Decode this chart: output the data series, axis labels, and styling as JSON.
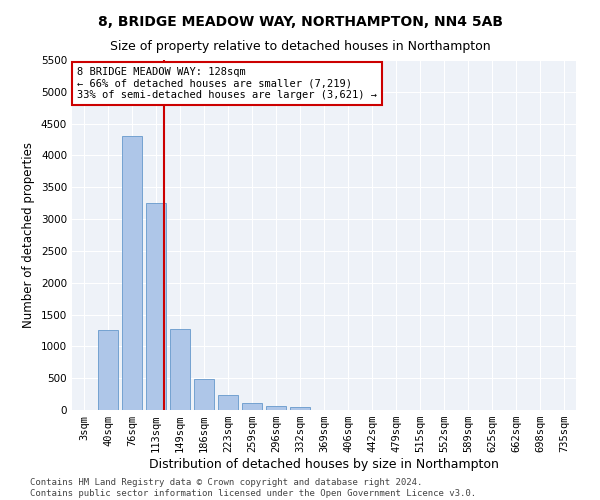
{
  "title1": "8, BRIDGE MEADOW WAY, NORTHAMPTON, NN4 5AB",
  "title2": "Size of property relative to detached houses in Northampton",
  "xlabel": "Distribution of detached houses by size in Northampton",
  "ylabel": "Number of detached properties",
  "categories": [
    "3sqm",
    "40sqm",
    "76sqm",
    "113sqm",
    "149sqm",
    "186sqm",
    "223sqm",
    "259sqm",
    "296sqm",
    "332sqm",
    "369sqm",
    "406sqm",
    "442sqm",
    "479sqm",
    "515sqm",
    "552sqm",
    "589sqm",
    "625sqm",
    "662sqm",
    "698sqm",
    "735sqm"
  ],
  "values": [
    0,
    1250,
    4300,
    3250,
    1280,
    480,
    230,
    110,
    70,
    55,
    0,
    0,
    0,
    0,
    0,
    0,
    0,
    0,
    0,
    0,
    0
  ],
  "bar_color": "#aec6e8",
  "bar_edge_color": "#6699cc",
  "vline_color": "#cc0000",
  "annotation_text": "8 BRIDGE MEADOW WAY: 128sqm\n← 66% of detached houses are smaller (7,219)\n33% of semi-detached houses are larger (3,621) →",
  "annotation_box_color": "#ffffff",
  "annotation_box_edgecolor": "#cc0000",
  "ylim": [
    0,
    5500
  ],
  "yticks": [
    0,
    500,
    1000,
    1500,
    2000,
    2500,
    3000,
    3500,
    4000,
    4500,
    5000,
    5500
  ],
  "bg_color": "#eef2f8",
  "footer": "Contains HM Land Registry data © Crown copyright and database right 2024.\nContains public sector information licensed under the Open Government Licence v3.0.",
  "title1_fontsize": 10,
  "title2_fontsize": 9,
  "xlabel_fontsize": 9,
  "ylabel_fontsize": 8.5,
  "tick_fontsize": 7.5,
  "footer_fontsize": 6.5
}
